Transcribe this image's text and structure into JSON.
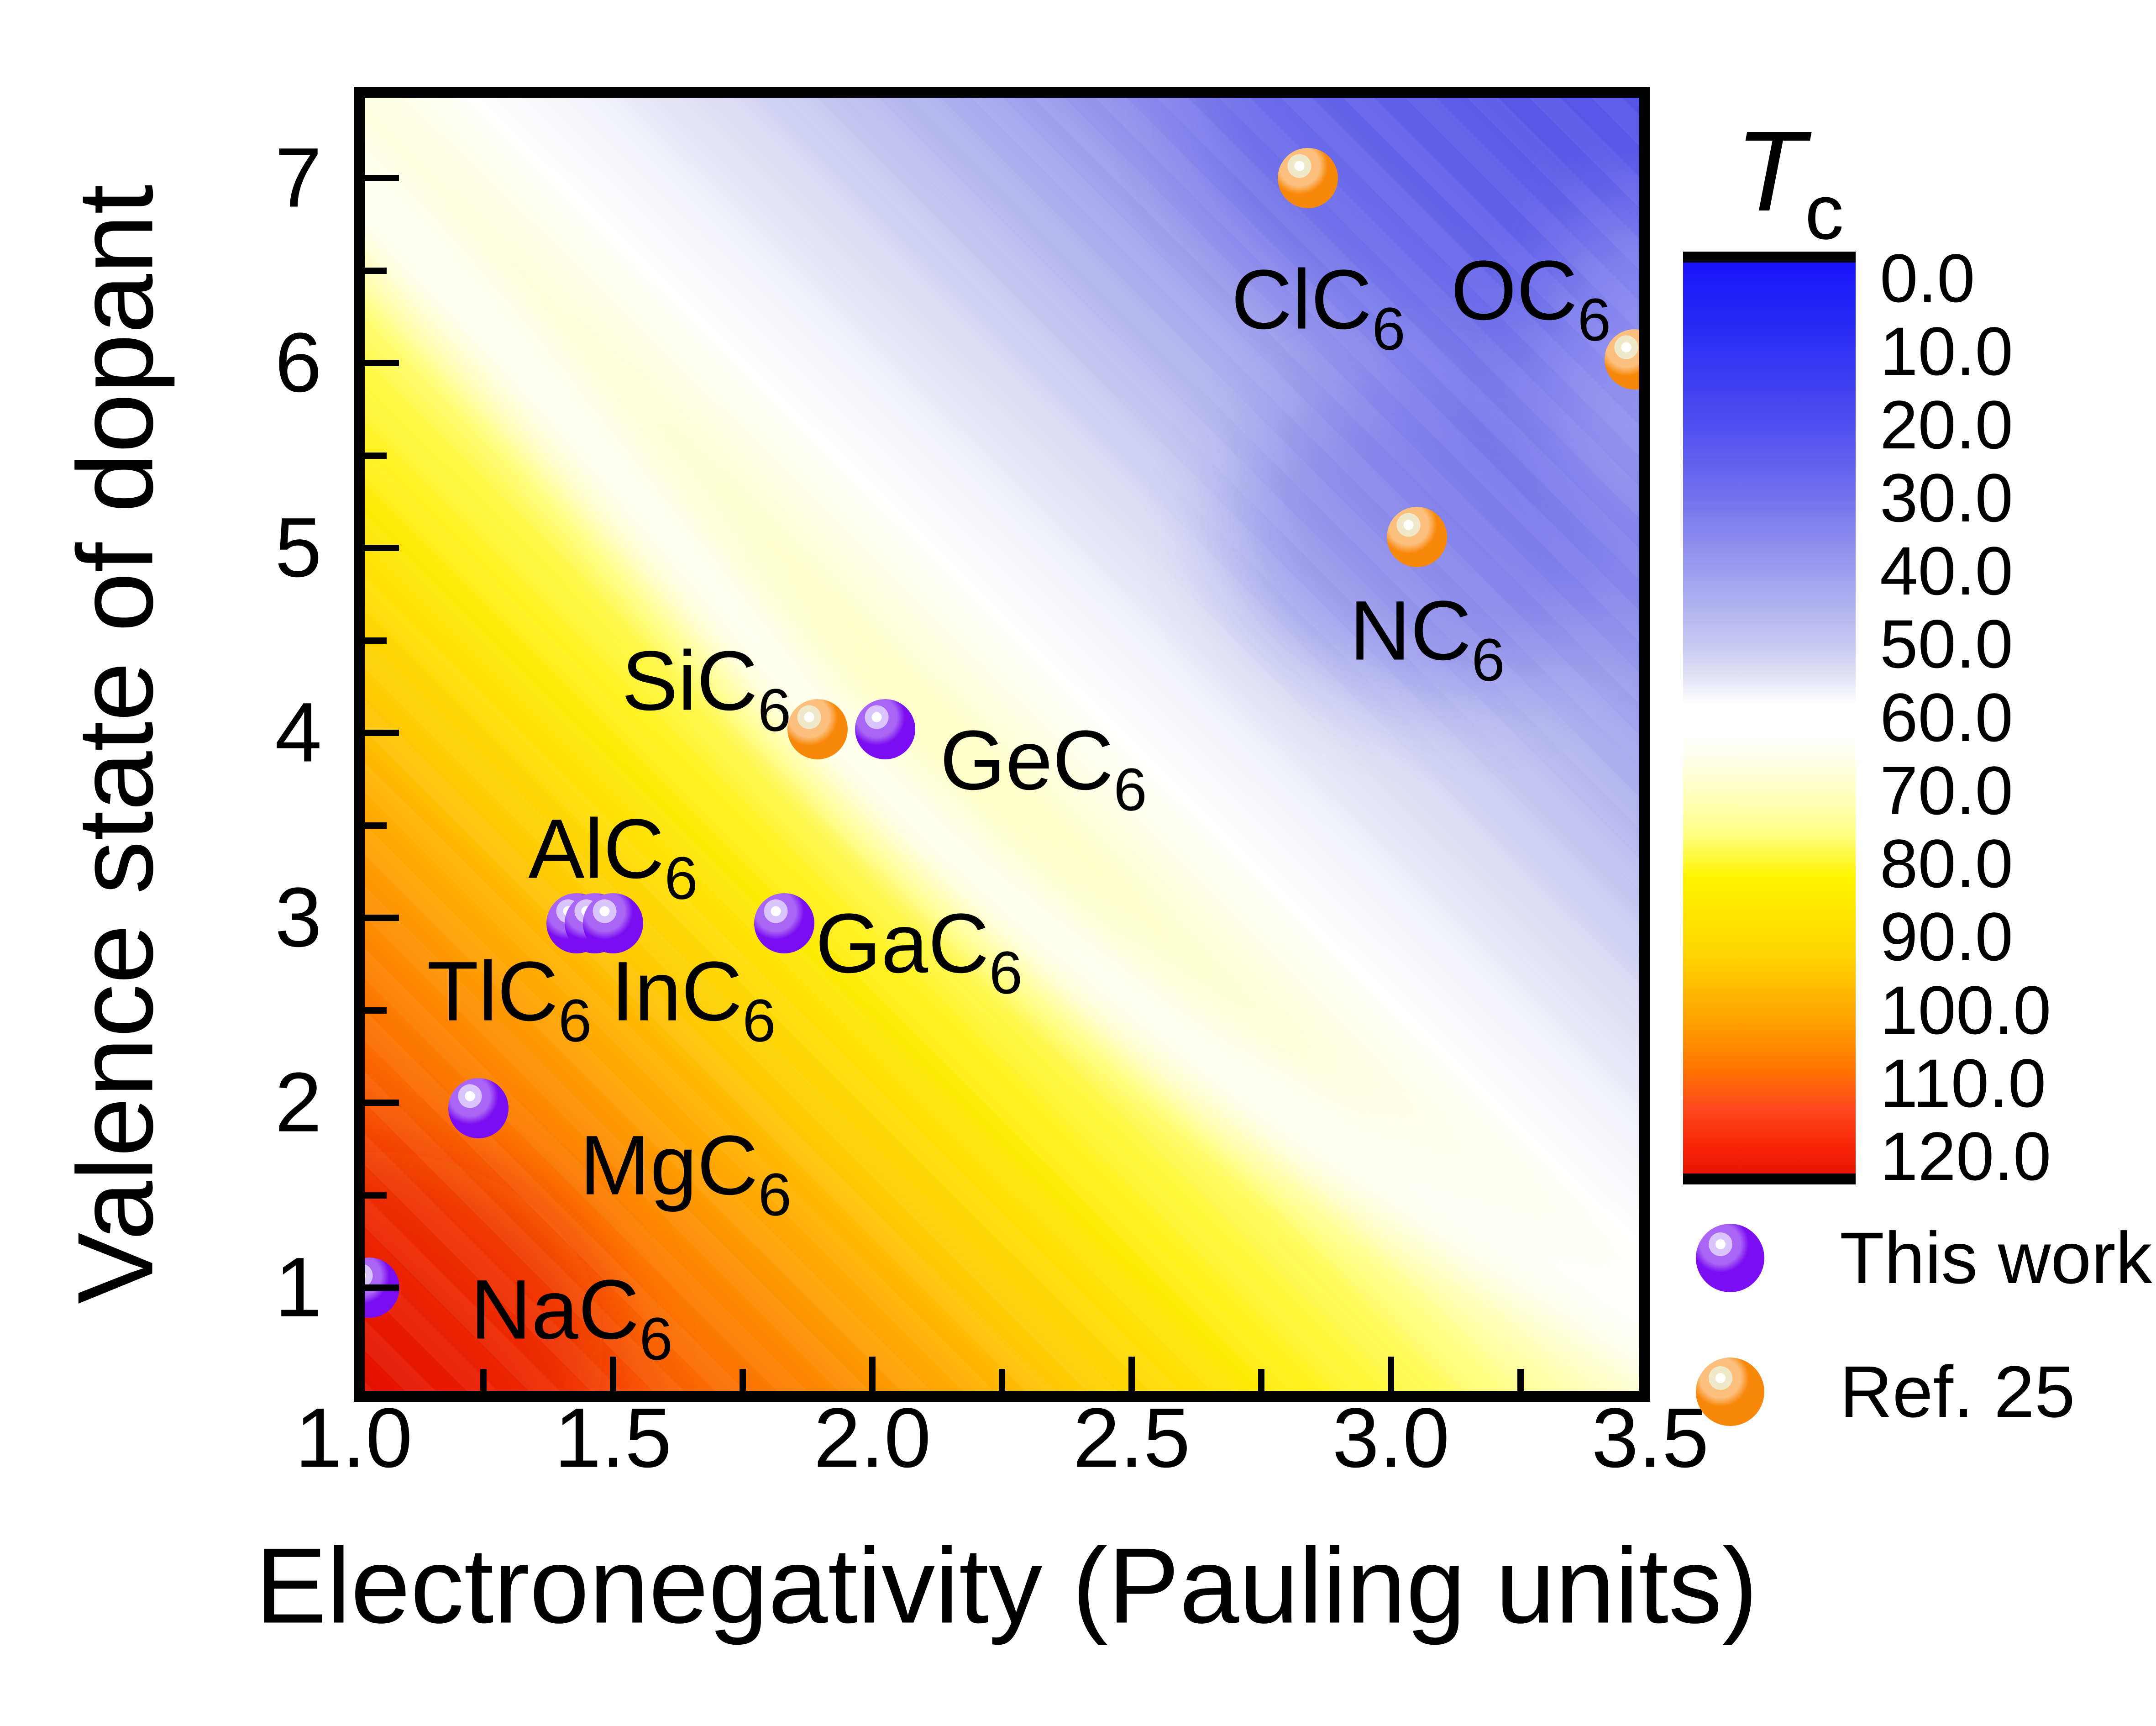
{
  "figure": {
    "xlabel": "Electronegativity (Pauling units)",
    "ylabel": "Valence state of dopant",
    "colorbar_title_main": "T",
    "colorbar_title_sub": "c"
  },
  "chart_data": {
    "type": "scatter",
    "background": "contour heatmap of superconducting Tc over electronegativity vs valence state, red (high Tc) at lower-left to blue (low Tc) at upper-right with a white band near Tc=60",
    "title": "",
    "xlabel": "Electronegativity (Pauling units)",
    "ylabel": "Valence state of dopant",
    "xlim": [
      1.0,
      3.5
    ],
    "ylim": [
      0.38,
      7.49
    ],
    "x_ticks": [
      "1.0",
      "1.5",
      "2.0",
      "2.5",
      "3.0",
      "3.5"
    ],
    "x_minor_ticks": [
      1.25,
      1.75,
      2.25,
      2.75,
      3.25
    ],
    "y_ticks": [
      "1",
      "2",
      "3",
      "4",
      "5",
      "6",
      "7"
    ],
    "y_minor_ticks": [
      1.5,
      2.5,
      3.5,
      4.5,
      5.5,
      6.5
    ],
    "grid": false,
    "colorbar": {
      "title": "Tc",
      "range": [
        0.0,
        120.0
      ],
      "orientation": "vertical, 0 at top",
      "tick_labels": [
        "0.0",
        "10.0",
        "20.0",
        "30.0",
        "40.0",
        "50.0",
        "60.0",
        "70.0",
        "80.0",
        "90.0",
        "100.0",
        "110.0",
        "120.0"
      ]
    },
    "legend_position": "right, below colorbar",
    "series": [
      {
        "name": "This work",
        "marker": "purple sphere",
        "points": [
          {
            "label": "NaC6",
            "x": 1.03,
            "y": 1.0,
            "label_x": 1.42,
            "label_y": 0.88
          },
          {
            "label": "MgC6",
            "x": 1.24,
            "y": 1.97,
            "label_x": 1.64,
            "label_y": 1.66
          },
          {
            "label": "TlC6",
            "x": 1.43,
            "y": 2.97,
            "label_x": 1.3,
            "label_y": 2.6
          },
          {
            "label": "InC6",
            "x": 1.465,
            "y": 2.97,
            "label_x": 1.655,
            "label_y": 2.6
          },
          {
            "label": "AlC6",
            "x": 1.5,
            "y": 2.97,
            "label_x": 1.5,
            "label_y": 3.37
          },
          {
            "label": "GaC6",
            "x": 1.83,
            "y": 2.97,
            "label_x": 2.09,
            "label_y": 2.86
          },
          {
            "label": "GeC6",
            "x": 2.025,
            "y": 4.02,
            "label_x": 2.33,
            "label_y": 3.85
          }
        ]
      },
      {
        "name": "Ref. 25",
        "marker": "orange sphere",
        "points": [
          {
            "label": "SiC6",
            "x": 1.894,
            "y": 4.02,
            "label_x": 1.68,
            "label_y": 4.28
          },
          {
            "label": "NC6",
            "x": 3.05,
            "y": 5.06,
            "label_x": 3.07,
            "label_y": 4.55
          },
          {
            "label": "ClC6",
            "x": 2.84,
            "y": 7.0,
            "label_x": 2.86,
            "label_y": 6.34
          },
          {
            "label": "OC6",
            "x": 3.47,
            "y": 6.02,
            "label_x": 3.27,
            "label_y": 6.39
          }
        ]
      }
    ]
  },
  "colors": {
    "purple_body": "#7a0df2",
    "purple_mid": "#a966f5",
    "purple_light": "#d9c4fb",
    "orange_body": "#f8880a",
    "orange_mid": "#fcbf7d",
    "orange_light": "#efe9ca",
    "highlight_core": "#ffffff",
    "axis_color": "#000000",
    "field_stops": [
      [
        0,
        "#df0f00"
      ],
      [
        5,
        "#ee2d03"
      ],
      [
        11,
        "#f85603"
      ],
      [
        17,
        "#fd7e01"
      ],
      [
        23,
        "#ffa802"
      ],
      [
        29,
        "#ffd103"
      ],
      [
        35,
        "#ffeb06"
      ],
      [
        41,
        "#fffb4e"
      ],
      [
        46,
        "#ffffa6"
      ],
      [
        51,
        "#ffffe0"
      ],
      [
        55,
        "#ffffff"
      ],
      [
        59,
        "#f2f2f9"
      ],
      [
        64,
        "#dcdcf4"
      ],
      [
        71,
        "#b6b6ef"
      ],
      [
        79,
        "#9090ec"
      ],
      [
        87,
        "#7373ea"
      ],
      [
        94,
        "#6161e9"
      ],
      [
        100,
        "#5858e8"
      ]
    ],
    "bar_stops": [
      [
        0,
        "#1a12fa"
      ],
      [
        4,
        "#2121f7"
      ],
      [
        8.3,
        "#2e2ef4"
      ],
      [
        16.7,
        "#4b4bf0"
      ],
      [
        25,
        "#6f6fed"
      ],
      [
        33.3,
        "#9c9cef"
      ],
      [
        41.7,
        "#c9c9f2"
      ],
      [
        45,
        "#e2e2f6"
      ],
      [
        47,
        "#f5f5fb"
      ],
      [
        48,
        "#ffffff"
      ],
      [
        51,
        "#ffffff"
      ],
      [
        53,
        "#fffff4"
      ],
      [
        58.3,
        "#ffffb8"
      ],
      [
        62,
        "#ffff85"
      ],
      [
        66.7,
        "#fff400"
      ],
      [
        75,
        "#ffd600"
      ],
      [
        83.3,
        "#ff9a00"
      ],
      [
        87.5,
        "#ff7500"
      ],
      [
        91.7,
        "#ff4a1c"
      ],
      [
        96,
        "#f82408"
      ],
      [
        100,
        "#e11000"
      ]
    ]
  }
}
